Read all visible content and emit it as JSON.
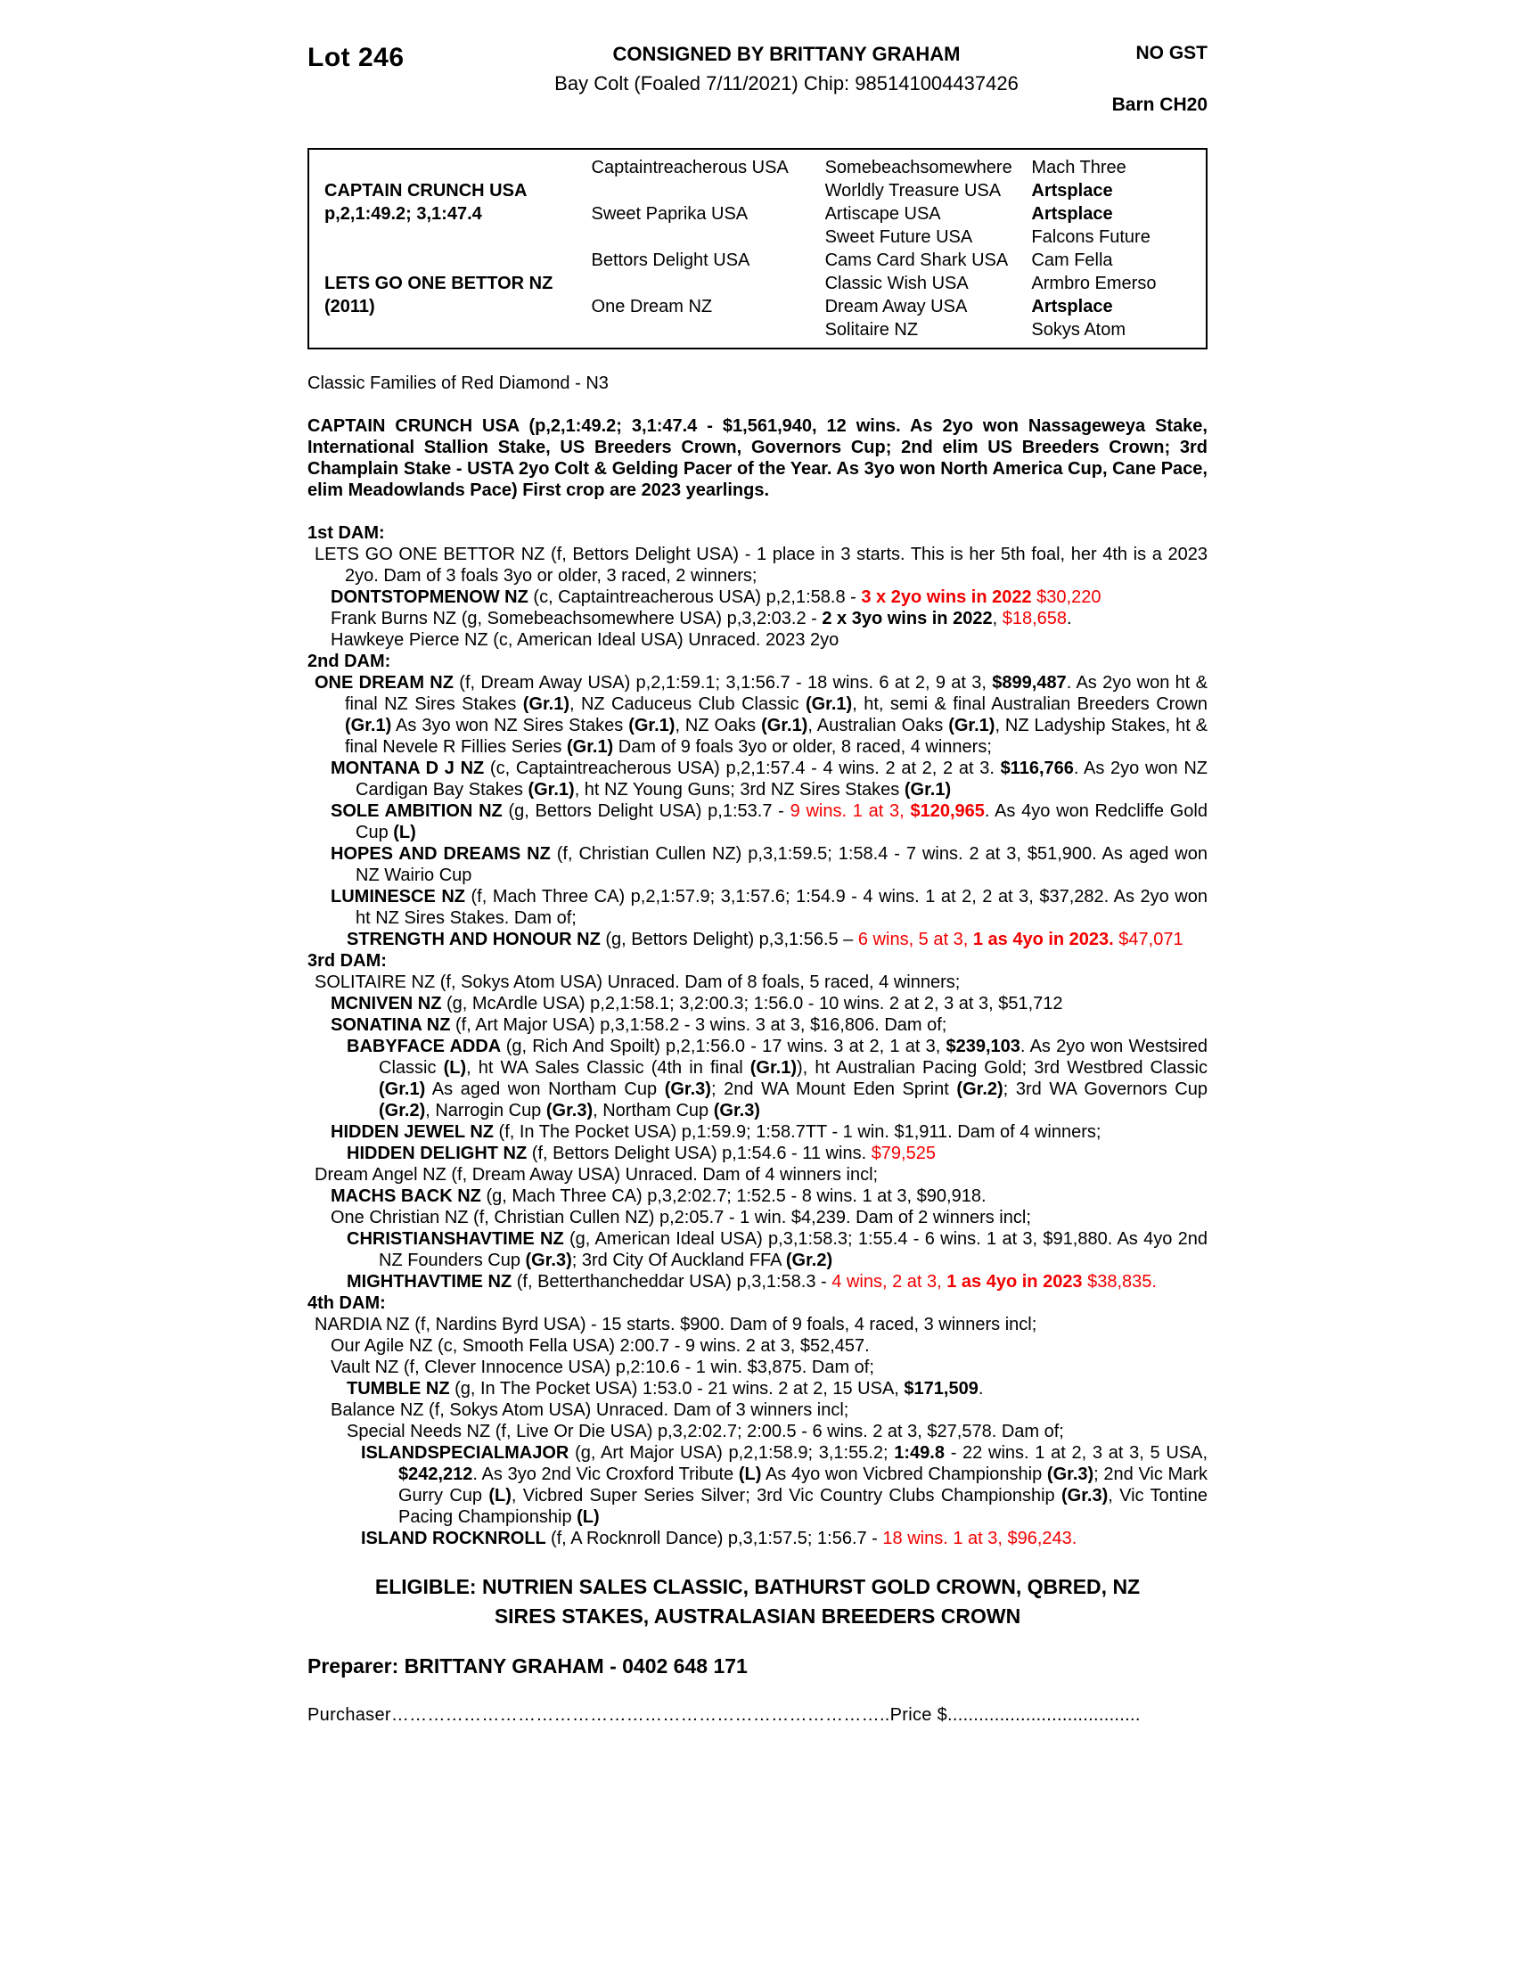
{
  "colors": {
    "red": "#f20000",
    "text": "#000000",
    "page": "#ffffff"
  },
  "header": {
    "lot": "Lot 246",
    "consigned": "CONSIGNED BY BRITTANY GRAHAM",
    "foal_info": "Bay Colt (Foaled 7/11/2021) Chip: 985141004437426",
    "no_gst": "NO GST",
    "barn": "Barn CH20"
  },
  "pedigree_table": {
    "rows": [
      [
        {
          "t": "",
          "b": false
        },
        {
          "t": "Captaintreacherous USA",
          "b": false
        },
        {
          "t": "Somebeachsomewhere",
          "b": false
        },
        {
          "t": "Mach Three",
          "b": false
        }
      ],
      [
        {
          "t": "CAPTAIN CRUNCH USA",
          "b": true
        },
        {
          "t": "",
          "b": false
        },
        {
          "t": "Worldly Treasure USA",
          "b": false
        },
        {
          "t": "Artsplace",
          "b": true
        }
      ],
      [
        {
          "t": "p,2,1:49.2; 3,1:47.4",
          "b": true
        },
        {
          "t": "Sweet Paprika USA",
          "b": false
        },
        {
          "t": "Artiscape USA",
          "b": false
        },
        {
          "t": "Artsplace",
          "b": true
        }
      ],
      [
        {
          "t": "",
          "b": false
        },
        {
          "t": "",
          "b": false
        },
        {
          "t": "Sweet Future USA",
          "b": false
        },
        {
          "t": "Falcons Future",
          "b": false
        }
      ],
      [
        {
          "t": "",
          "b": false
        },
        {
          "t": "Bettors Delight USA",
          "b": false
        },
        {
          "t": "Cams Card Shark USA",
          "b": false
        },
        {
          "t": "Cam Fella",
          "b": false
        }
      ],
      [
        {
          "t": "LETS GO ONE BETTOR NZ",
          "b": true
        },
        {
          "t": "",
          "b": false
        },
        {
          "t": "Classic Wish USA",
          "b": false
        },
        {
          "t": "Armbro Emerso",
          "b": false
        }
      ],
      [
        {
          "t": "(2011)",
          "b": true
        },
        {
          "t": "One Dream NZ",
          "b": false
        },
        {
          "t": "Dream Away USA",
          "b": false
        },
        {
          "t": "Artsplace",
          "b": true
        }
      ],
      [
        {
          "t": "",
          "b": false
        },
        {
          "t": "",
          "b": false
        },
        {
          "t": "Solitaire NZ",
          "b": false
        },
        {
          "t": "Sokys Atom",
          "b": false
        }
      ]
    ]
  },
  "family_note": "Classic Families of Red Diamond - N3",
  "entries": [
    {
      "flat": true,
      "gap": true,
      "segments": [
        {
          "s": "b",
          "t": "CAPTAIN CRUNCH USA (p,2,1:49.2; 3,1:47.4 - $1,561,940, 12 wins. As 2yo won Nassageweya Stake, International Stallion Stake, US Breeders Crown, Governors Cup; 2nd elim US Breeders Crown; 3rd Champlain Stake - USTA 2yo Colt & Gelding Pacer of the Year. As 3yo won North America Cup, Cane Pace, elim Meadowlands Pace) First crop are 2023 yearlings."
        }
      ]
    },
    {
      "heading": true,
      "gap": true,
      "segments": [
        {
          "s": "b",
          "t": "1st DAM:"
        }
      ]
    },
    {
      "indent": 0,
      "segments": [
        {
          "s": "n",
          "t": "LETS GO ONE BETTOR NZ (f, Bettors Delight USA) - 1 place in 3 starts. This is her 5th foal, her 4th is a 2023 2yo. Dam of 3 foals 3yo or older, 3 raced, 2 winners;"
        }
      ]
    },
    {
      "indent": 1,
      "segments": [
        {
          "s": "b",
          "t": "DONTSTOPMENOW NZ "
        },
        {
          "s": "n",
          "t": "(c, Captaintreacherous USA) p,2,1:58.8 - "
        },
        {
          "s": "br",
          "t": "3 x 2yo wins in 2022 "
        },
        {
          "s": "r",
          "t": "$30,220"
        }
      ]
    },
    {
      "indent": 1,
      "segments": [
        {
          "s": "n",
          "t": "Frank Burns NZ (g, Somebeachsomewhere USA) p,3,2:03.2 - "
        },
        {
          "s": "b",
          "t": "2 x 3yo wins in 2022"
        },
        {
          "s": "n",
          "t": ", "
        },
        {
          "s": "r",
          "t": "$18,658"
        },
        {
          "s": "n",
          "t": "."
        }
      ]
    },
    {
      "indent": 1,
      "segments": [
        {
          "s": "n",
          "t": "Hawkeye Pierce NZ (c, American Ideal USA) Unraced. 2023 2yo"
        }
      ]
    },
    {
      "heading": true,
      "segments": [
        {
          "s": "b",
          "t": "2nd DAM:"
        }
      ]
    },
    {
      "indent": 0,
      "segments": [
        {
          "s": "b",
          "t": "ONE DREAM NZ "
        },
        {
          "s": "n",
          "t": "(f, Dream Away USA) p,2,1:59.1; 3,1:56.7 - 18 wins. 6 at 2, 9 at 3, "
        },
        {
          "s": "b",
          "t": "$899,487"
        },
        {
          "s": "n",
          "t": ". As 2yo won ht & final NZ Sires Stakes "
        },
        {
          "s": "b",
          "t": "(Gr.1)"
        },
        {
          "s": "n",
          "t": ", NZ Caduceus Club Classic "
        },
        {
          "s": "b",
          "t": "(Gr.1)"
        },
        {
          "s": "n",
          "t": ", ht, semi & final Australian Breeders Crown "
        },
        {
          "s": "b",
          "t": "(Gr.1)"
        },
        {
          "s": "n",
          "t": " As 3yo won NZ Sires Stakes "
        },
        {
          "s": "b",
          "t": "(Gr.1)"
        },
        {
          "s": "n",
          "t": ", NZ Oaks "
        },
        {
          "s": "b",
          "t": "(Gr.1)"
        },
        {
          "s": "n",
          "t": ", Australian Oaks "
        },
        {
          "s": "b",
          "t": "(Gr.1)"
        },
        {
          "s": "n",
          "t": ", NZ Ladyship Stakes, ht & final Nevele R Fillies Series "
        },
        {
          "s": "b",
          "t": "(Gr.1)"
        },
        {
          "s": "n",
          "t": " Dam of 9 foals 3yo or older, 8 raced, 4 winners;"
        }
      ]
    },
    {
      "indent": 1,
      "segments": [
        {
          "s": "b",
          "t": "MONTANA D J NZ "
        },
        {
          "s": "n",
          "t": "(c, Captaintreacherous USA) p,2,1:57.4 - 4 wins. 2 at 2, 2 at 3. "
        },
        {
          "s": "b",
          "t": "$116,766"
        },
        {
          "s": "n",
          "t": ". As 2yo won NZ Cardigan Bay Stakes "
        },
        {
          "s": "b",
          "t": "(Gr.1)"
        },
        {
          "s": "n",
          "t": ", ht NZ Young Guns; 3rd NZ Sires Stakes "
        },
        {
          "s": "b",
          "t": "(Gr.1)"
        }
      ]
    },
    {
      "indent": 1,
      "segments": [
        {
          "s": "b",
          "t": "SOLE AMBITION NZ "
        },
        {
          "s": "n",
          "t": "(g, Bettors Delight USA) p,1:53.7 - "
        },
        {
          "s": "r",
          "t": "9 wins. 1 at 3, "
        },
        {
          "s": "br",
          "t": "$120,965"
        },
        {
          "s": "n",
          "t": ". As 4yo won Redcliffe Gold Cup "
        },
        {
          "s": "b",
          "t": "(L)"
        }
      ]
    },
    {
      "indent": 1,
      "segments": [
        {
          "s": "b",
          "t": "HOPES AND DREAMS NZ "
        },
        {
          "s": "n",
          "t": "(f, Christian Cullen NZ) p,3,1:59.5; 1:58.4 - 7 wins. 2 at 3, $51,900. As aged won NZ Wairio Cup"
        }
      ]
    },
    {
      "indent": 1,
      "segments": [
        {
          "s": "b",
          "t": "LUMINESCE NZ "
        },
        {
          "s": "n",
          "t": "(f, Mach Three CA) p,2,1:57.9; 3,1:57.6; 1:54.9 - 4 wins. 1 at 2, 2 at 3, $37,282. As 2yo won ht NZ Sires Stakes. Dam of;"
        }
      ]
    },
    {
      "indent": 2,
      "segments": [
        {
          "s": "b",
          "t": "STRENGTH AND HONOUR NZ "
        },
        {
          "s": "n",
          "t": "(g, Bettors Delight) p,3,1:56.5 – "
        },
        {
          "s": "r",
          "t": "6 wins, 5 at 3, "
        },
        {
          "s": "br",
          "t": "1 as 4yo in 2023."
        },
        {
          "s": "r",
          "t": " $47,071"
        }
      ]
    },
    {
      "heading": true,
      "segments": [
        {
          "s": "b",
          "t": "3rd DAM:"
        }
      ]
    },
    {
      "indent": 0,
      "segments": [
        {
          "s": "n",
          "t": "SOLITAIRE NZ (f, Sokys Atom USA) Unraced. Dam of 8 foals, 5 raced, 4 winners;"
        }
      ]
    },
    {
      "indent": 1,
      "segments": [
        {
          "s": "b",
          "t": "MCNIVEN NZ "
        },
        {
          "s": "n",
          "t": "(g, McArdle USA) p,2,1:58.1; 3,2:00.3; 1:56.0 - 10 wins. 2 at 2, 3 at 3, $51,712"
        }
      ]
    },
    {
      "indent": 1,
      "segments": [
        {
          "s": "b",
          "t": "SONATINA NZ "
        },
        {
          "s": "n",
          "t": "(f, Art Major USA) p,3,1:58.2 - 3 wins. 3 at 3, $16,806. Dam of;"
        }
      ]
    },
    {
      "indent": 2,
      "segments": [
        {
          "s": "b",
          "t": "BABYFACE ADDA "
        },
        {
          "s": "n",
          "t": "(g, Rich And Spoilt) p,2,1:56.0 - 17 wins. 3 at 2, 1 at 3, "
        },
        {
          "s": "b",
          "t": "$239,103"
        },
        {
          "s": "n",
          "t": ". As 2yo won Westsired Classic "
        },
        {
          "s": "b",
          "t": "(L)"
        },
        {
          "s": "n",
          "t": ", ht WA Sales Classic (4th in final "
        },
        {
          "s": "b",
          "t": "(Gr.1)"
        },
        {
          "s": "n",
          "t": "), ht Australian Pacing Gold; 3rd Westbred Classic "
        },
        {
          "s": "b",
          "t": "(Gr.1)"
        },
        {
          "s": "n",
          "t": " As aged won Northam Cup "
        },
        {
          "s": "b",
          "t": "(Gr.3)"
        },
        {
          "s": "n",
          "t": "; 2nd WA Mount Eden Sprint "
        },
        {
          "s": "b",
          "t": "(Gr.2)"
        },
        {
          "s": "n",
          "t": "; 3rd WA Governors Cup "
        },
        {
          "s": "b",
          "t": "(Gr.2)"
        },
        {
          "s": "n",
          "t": ", Narrogin Cup "
        },
        {
          "s": "b",
          "t": "(Gr.3)"
        },
        {
          "s": "n",
          "t": ", Northam Cup "
        },
        {
          "s": "b",
          "t": "(Gr.3)"
        }
      ]
    },
    {
      "indent": 1,
      "segments": [
        {
          "s": "b",
          "t": "HIDDEN JEWEL NZ "
        },
        {
          "s": "n",
          "t": "(f, In The Pocket USA) p,1:59.9; 1:58.7TT - 1 win. $1,911. Dam of 4 winners;"
        }
      ]
    },
    {
      "indent": 2,
      "segments": [
        {
          "s": "b",
          "t": "HIDDEN DELIGHT NZ "
        },
        {
          "s": "n",
          "t": "(f, Bettors Delight USA) p,1:54.6 - 11 wins. "
        },
        {
          "s": "r",
          "t": "$79,525"
        }
      ]
    },
    {
      "indent": 0,
      "segments": [
        {
          "s": "n",
          "t": "Dream Angel NZ (f, Dream Away USA) Unraced. Dam of 4 winners incl;"
        }
      ]
    },
    {
      "indent": 1,
      "segments": [
        {
          "s": "b",
          "t": "MACHS BACK NZ "
        },
        {
          "s": "n",
          "t": "(g, Mach Three CA) p,3,2:02.7; 1:52.5 - 8 wins. 1 at 3, $90,918."
        }
      ]
    },
    {
      "indent": 1,
      "segments": [
        {
          "s": "n",
          "t": "One Christian NZ (f, Christian Cullen NZ) p,2:05.7 - 1 win. $4,239. Dam of 2 winners incl;"
        }
      ]
    },
    {
      "indent": 2,
      "segments": [
        {
          "s": "b",
          "t": "CHRISTIANSHAVTIME NZ "
        },
        {
          "s": "n",
          "t": "(g, American Ideal USA) p,3,1:58.3; 1:55.4 - 6 wins. 1 at 3, $91,880. As 4yo 2nd NZ Founders Cup "
        },
        {
          "s": "b",
          "t": "(Gr.3)"
        },
        {
          "s": "n",
          "t": "; 3rd City Of Auckland FFA "
        },
        {
          "s": "b",
          "t": "(Gr.2)"
        }
      ]
    },
    {
      "indent": 2,
      "segments": [
        {
          "s": "b",
          "t": "MIGHTHAVTIME NZ "
        },
        {
          "s": "n",
          "t": "(f, Betterthancheddar USA) p,3,1:58.3 - "
        },
        {
          "s": "r",
          "t": "4 wins, 2 at 3, "
        },
        {
          "s": "br",
          "t": "1 as 4yo in 2023"
        },
        {
          "s": "r",
          "t": " $38,835."
        }
      ]
    },
    {
      "heading": true,
      "segments": [
        {
          "s": "b",
          "t": "4th DAM:"
        }
      ]
    },
    {
      "indent": 0,
      "segments": [
        {
          "s": "n",
          "t": "NARDIA NZ (f, Nardins Byrd USA) - 15 starts. $900. Dam of 9 foals, 4 raced, 3 winners incl;"
        }
      ]
    },
    {
      "indent": 1,
      "segments": [
        {
          "s": "n",
          "t": "Our Agile NZ (c, Smooth Fella USA) 2:00.7 - 9 wins. 2 at 3, $52,457."
        }
      ]
    },
    {
      "indent": 1,
      "segments": [
        {
          "s": "n",
          "t": "Vault NZ (f, Clever Innocence USA) p,2:10.6 - 1 win. $3,875. Dam of;"
        }
      ]
    },
    {
      "indent": 2,
      "segments": [
        {
          "s": "b",
          "t": "TUMBLE NZ "
        },
        {
          "s": "n",
          "t": "(g, In The Pocket USA) 1:53.0 - 21 wins. 2 at 2, 15 USA, "
        },
        {
          "s": "b",
          "t": "$171,509"
        },
        {
          "s": "n",
          "t": "."
        }
      ]
    },
    {
      "indent": 1,
      "segments": [
        {
          "s": "n",
          "t": "Balance NZ (f, Sokys Atom USA) Unraced. Dam of 3 winners incl;"
        }
      ]
    },
    {
      "indent": 2,
      "segments": [
        {
          "s": "n",
          "t": "Special Needs NZ (f, Live Or Die USA) p,3,2:02.7; 2:00.5 - 6 wins. 2 at 3, $27,578. Dam of;"
        }
      ]
    },
    {
      "indent": 3,
      "segments": [
        {
          "s": "b",
          "t": "ISLANDSPECIALMAJOR "
        },
        {
          "s": "n",
          "t": "(g, Art Major USA) p,2,1:58.9; 3,1:55.2; "
        },
        {
          "s": "b",
          "t": "1:49.8"
        },
        {
          "s": "n",
          "t": " - 22 wins. 1 at 2, 3 at 3, 5 USA, "
        },
        {
          "s": "b",
          "t": "$242,212"
        },
        {
          "s": "n",
          "t": ". As 3yo 2nd Vic Croxford Tribute "
        },
        {
          "s": "b",
          "t": "(L)"
        },
        {
          "s": "n",
          "t": " As 4yo won Vicbred Championship "
        },
        {
          "s": "b",
          "t": "(Gr.3)"
        },
        {
          "s": "n",
          "t": "; 2nd Vic Mark Gurry Cup "
        },
        {
          "s": "b",
          "t": "(L)"
        },
        {
          "s": "n",
          "t": ", Vicbred Super Series Silver; 3rd Vic Country Clubs Championship "
        },
        {
          "s": "b",
          "t": "(Gr.3)"
        },
        {
          "s": "n",
          "t": ", Vic Tontine Pacing Championship "
        },
        {
          "s": "b",
          "t": "(L)"
        }
      ]
    },
    {
      "indent": 3,
      "segments": [
        {
          "s": "b",
          "t": "ISLAND ROCKNROLL "
        },
        {
          "s": "n",
          "t": "(f, A Rocknroll Dance) p,3,1:57.5; 1:56.7 - "
        },
        {
          "s": "r",
          "t": "18 wins. 1 at 3, $96,243."
        }
      ]
    }
  ],
  "footer": {
    "eligible_line1": "ELIGIBLE: NUTRIEN SALES CLASSIC, BATHURST GOLD CROWN, QBRED, NZ",
    "eligible_line2": "SIRES STAKES, AUSTRALASIAN BREEDERS CROWN",
    "preparer": "Preparer: BRITTANY GRAHAM - 0402 648 171",
    "purchaser_line": "Purchaser………………………………………………………………………..Price $....................................."
  }
}
